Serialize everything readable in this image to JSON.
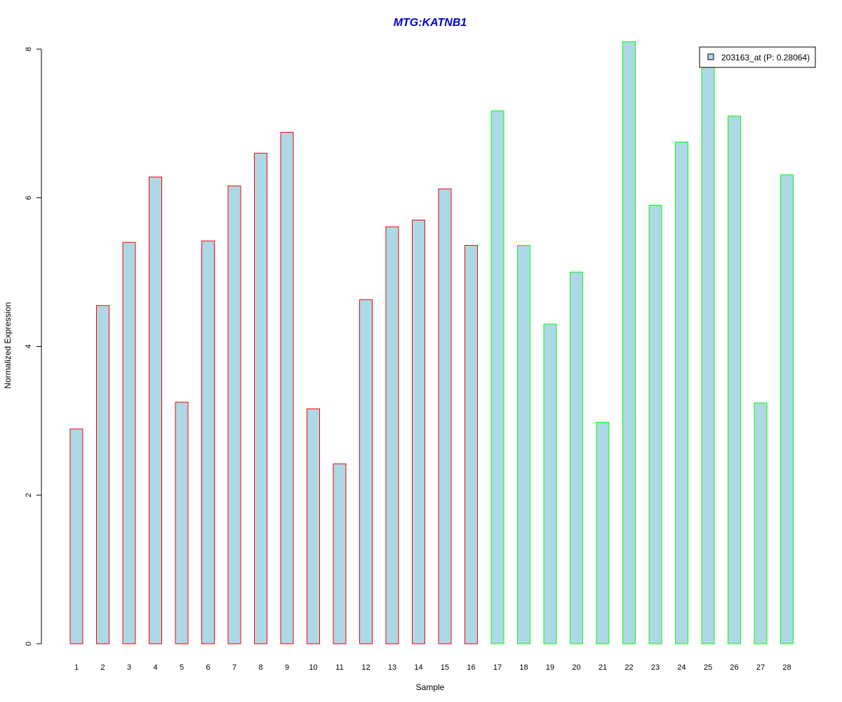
{
  "chart_data": {
    "type": "bar",
    "title": "MTG:KATNB1",
    "title_color": "#0000cc",
    "xlabel": "Sample",
    "ylabel": "Normalized Expression",
    "ylim": [
      0,
      8
    ],
    "yticks": [
      0,
      2,
      4,
      6,
      8
    ],
    "grid": false,
    "legend_position": "top-right",
    "fill_color": "#add8e6",
    "categories": [
      "1",
      "2",
      "3",
      "4",
      "5",
      "6",
      "7",
      "8",
      "9",
      "10",
      "11",
      "12",
      "13",
      "14",
      "15",
      "16",
      "17",
      "18",
      "19",
      "20",
      "21",
      "22",
      "23",
      "24",
      "25",
      "26",
      "27",
      "28"
    ],
    "values": [
      2.89,
      4.55,
      5.4,
      6.28,
      3.25,
      5.42,
      6.16,
      6.6,
      6.88,
      3.16,
      2.42,
      4.63,
      5.61,
      5.7,
      6.12,
      5.36,
      7.17,
      5.36,
      4.3,
      5.0,
      2.98,
      8.1,
      5.9,
      6.75,
      7.95,
      7.1,
      3.24,
      6.31
    ],
    "border_colors": [
      "#ff0000",
      "#ff0000",
      "#ff0000",
      "#ff0000",
      "#ff0000",
      "#ff0000",
      "#ff0000",
      "#ff0000",
      "#ff0000",
      "#ff0000",
      "#ff0000",
      "#ff0000",
      "#ff0000",
      "#ff0000",
      "#ff0000",
      "#ff0000",
      "#00ff00",
      "#00ff00",
      "#00ff00",
      "#00ff00",
      "#00ff00",
      "#00ff00",
      "#00ff00",
      "#00ff00",
      "#00ff00",
      "#00ff00",
      "#00ff00",
      "#00ff00"
    ],
    "series": [
      {
        "name": "203163_at (P: 0.28064)",
        "color": "#add8e6"
      }
    ]
  }
}
